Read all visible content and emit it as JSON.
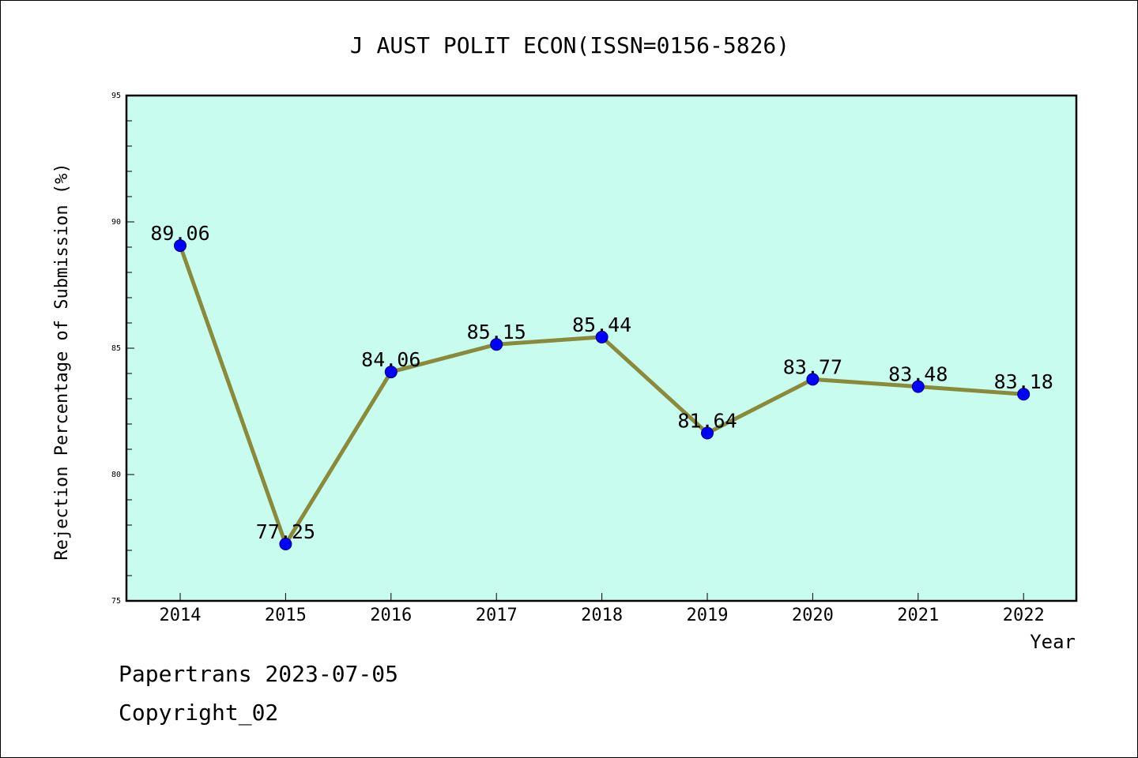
{
  "chart_data": {
    "type": "line",
    "title": "J AUST POLIT ECON(ISSN=0156-5826)",
    "xlabel": "Year",
    "ylabel": "Rejection Percentage of Submission (%)",
    "categories": [
      "2014",
      "2015",
      "2016",
      "2017",
      "2018",
      "2019",
      "2020",
      "2021",
      "2022"
    ],
    "values": [
      89.06,
      77.25,
      84.06,
      85.15,
      85.44,
      81.64,
      83.77,
      83.48,
      83.18
    ],
    "data_labels": [
      "89.06",
      "77.25",
      "84.06",
      "85.15",
      "85.44",
      "81.64",
      "83.77",
      "83.48",
      "83.18"
    ],
    "ylim": [
      75,
      95
    ],
    "yticks": [
      75,
      80,
      85,
      90,
      95
    ],
    "ytick_labels": [
      "75",
      "80",
      "85",
      "90",
      "95"
    ],
    "grid": false,
    "colors": {
      "plot_background": "#c8fcee",
      "line": "#8b8a3a",
      "marker": "#0000ff"
    }
  },
  "footer": {
    "line1": "Papertrans 2023-07-05",
    "line2": "Copyright_02"
  }
}
